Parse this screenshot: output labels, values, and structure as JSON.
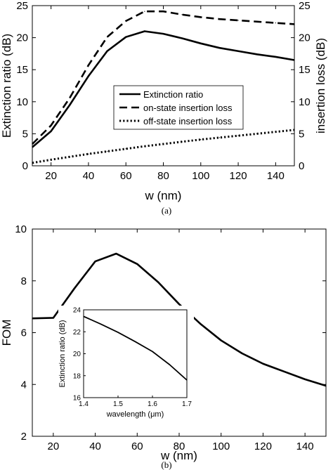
{
  "chart_data": [
    {
      "id": "a",
      "type": "line",
      "panel_label": "(a)",
      "xlabel": "w (nm)",
      "ylabel": "Extinction ratio (dB)",
      "y2label": "insertion loss (dB)",
      "xlim": [
        10,
        150
      ],
      "ylim": [
        0,
        25
      ],
      "y2lim": [
        0,
        25
      ],
      "xticks": [
        20,
        40,
        60,
        80,
        100,
        120,
        140
      ],
      "yticks": [
        0,
        5,
        10,
        15,
        20,
        25
      ],
      "y2ticks": [
        0,
        5,
        10,
        15,
        20,
        25
      ],
      "legend_position": "center",
      "series": [
        {
          "name": "Extinction ratio",
          "style": "solid",
          "axis": "left",
          "x": [
            10,
            20,
            30,
            40,
            50,
            60,
            70,
            80,
            90,
            100,
            110,
            120,
            130,
            140,
            150
          ],
          "y": [
            2.9,
            5.4,
            9.5,
            14.0,
            17.9,
            20.1,
            21.0,
            20.6,
            19.9,
            19.1,
            18.4,
            17.9,
            17.4,
            17.0,
            16.5
          ]
        },
        {
          "name": "on-state insertion loss",
          "style": "dashed",
          "axis": "right",
          "x": [
            10,
            20,
            30,
            40,
            50,
            60,
            70,
            80,
            90,
            100,
            110,
            120,
            130,
            140,
            150
          ],
          "y": [
            3.4,
            6.3,
            10.6,
            15.7,
            20.1,
            22.6,
            24.1,
            24.1,
            23.6,
            23.2,
            22.9,
            22.7,
            22.5,
            22.3,
            22.1
          ]
        },
        {
          "name": "off-state insertion loss",
          "style": "dotted",
          "axis": "right",
          "x": [
            10,
            20,
            30,
            40,
            50,
            60,
            70,
            80,
            90,
            100,
            110,
            120,
            130,
            140,
            150
          ],
          "y": [
            0.45,
            0.95,
            1.4,
            1.85,
            2.25,
            2.65,
            3.05,
            3.4,
            3.75,
            4.1,
            4.4,
            4.7,
            5.0,
            5.3,
            5.6
          ]
        }
      ]
    },
    {
      "id": "b",
      "type": "line",
      "panel_label": "(b)",
      "xlabel": "w (nm)",
      "ylabel": "FOM",
      "xlim": [
        10,
        150
      ],
      "ylim": [
        2,
        10
      ],
      "xticks": [
        20,
        40,
        60,
        80,
        100,
        120,
        140
      ],
      "yticks": [
        2,
        4,
        6,
        8,
        10
      ],
      "series": [
        {
          "style": "solid",
          "x": [
            10,
            20,
            30,
            40,
            50,
            60,
            70,
            80,
            90,
            100,
            110,
            120,
            130,
            140,
            150
          ],
          "y": [
            6.55,
            6.57,
            7.7,
            8.75,
            9.05,
            8.65,
            7.95,
            7.1,
            6.35,
            5.7,
            5.2,
            4.8,
            4.5,
            4.2,
            3.95
          ]
        }
      ],
      "inset": {
        "type": "line",
        "xlabel": "wavelength (μm)",
        "ylabel": "Extinction ratio (dB)",
        "xlim": [
          1.4,
          1.7
        ],
        "ylim": [
          16,
          24
        ],
        "xticks": [
          "1.4",
          "1.5",
          "1.6",
          "1.7"
        ],
        "yticks": [
          16,
          18,
          20,
          22,
          24
        ],
        "series": [
          {
            "style": "solid",
            "x": [
              1.4,
              1.45,
              1.5,
              1.55,
              1.6,
              1.65,
              1.7
            ],
            "y": [
              23.4,
              22.7,
              21.95,
              21.1,
              20.2,
              19.0,
              17.6
            ]
          }
        ]
      }
    }
  ]
}
